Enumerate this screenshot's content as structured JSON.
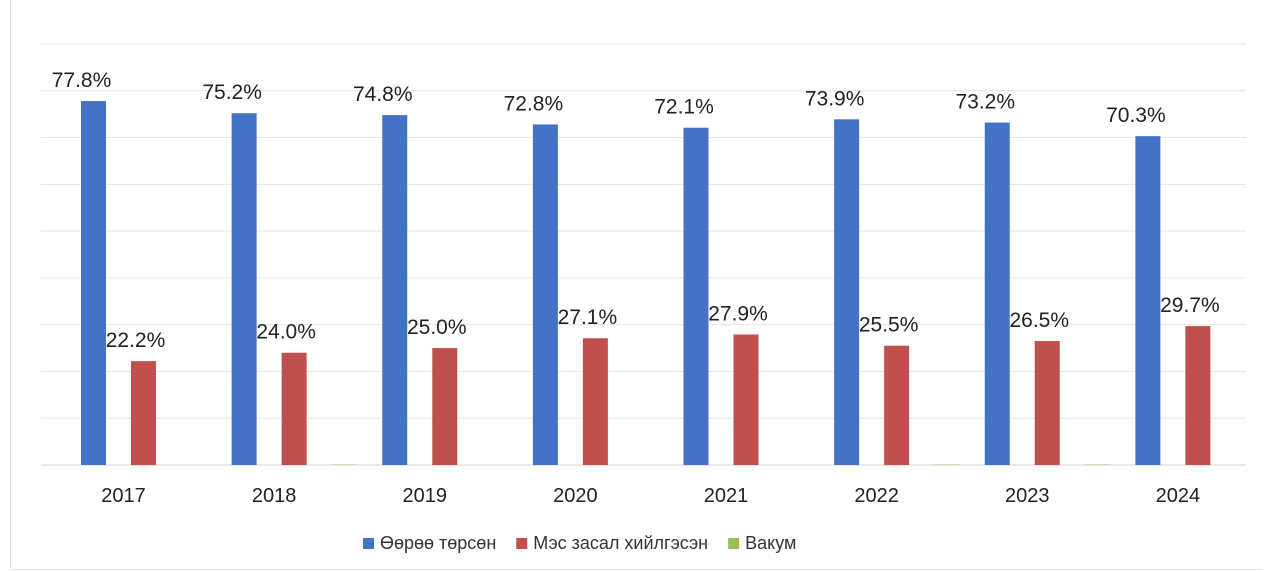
{
  "chart_data": {
    "type": "bar",
    "categories": [
      "2017",
      "2018",
      "2019",
      "2020",
      "2021",
      "2022",
      "2023",
      "2024"
    ],
    "series": [
      {
        "name": "Өөрөө төрсөн",
        "color": "#4472C4",
        "values": [
          77.8,
          75.2,
          74.8,
          72.8,
          72.1,
          73.9,
          73.2,
          70.3
        ],
        "labels": [
          "77.8%",
          "75.2%",
          "74.8%",
          "72.8%",
          "72.1%",
          "73.9%",
          "73.2%",
          "70.3%"
        ]
      },
      {
        "name": "Мэс засал хийлгэсэн",
        "color": "#C0504D",
        "values": [
          22.2,
          24.0,
          25.0,
          27.1,
          27.9,
          25.5,
          26.5,
          29.7
        ],
        "labels": [
          "22.2%",
          "24.0%",
          "25.0%",
          "27.1%",
          "27.9%",
          "25.5%",
          "26.5%",
          "29.7%"
        ]
      },
      {
        "name": "Вакум",
        "color": "#9BBB59",
        "values": [
          0,
          0.1,
          0,
          0,
          0,
          0.1,
          0.1,
          0
        ]
      }
    ],
    "ylim": [
      0,
      90
    ],
    "grid": true,
    "legend_position": "bottom"
  }
}
